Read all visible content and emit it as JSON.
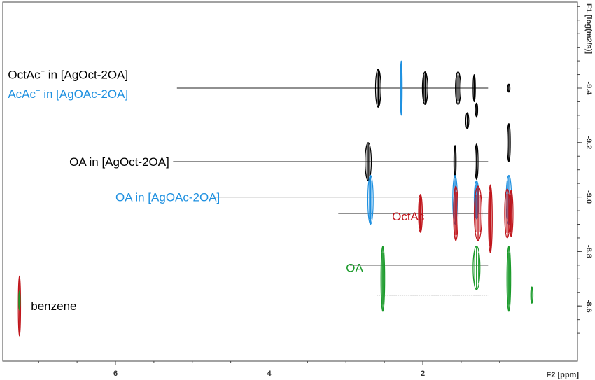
{
  "chart_data": {
    "type": "scatter",
    "title": "",
    "xlabel": "F2 [ppm]",
    "ylabel": "F1 [log(m2/s)]",
    "xlim": [
      7.4,
      1.0
    ],
    "ylim": [
      -8.4,
      -9.7
    ],
    "x_ticks": [
      "6",
      "4",
      "2"
    ],
    "x_tick_values": [
      6,
      4,
      2
    ],
    "y_ticks": [
      "-9.4",
      "-9.2",
      "-9.0",
      "-8.8",
      "-8.6"
    ],
    "y_tick_values": [
      -9.4,
      -9.2,
      -9.0,
      -8.8,
      -8.6
    ],
    "grid": false,
    "colors": {
      "black": "#000000",
      "blue": "#1e90e0",
      "red": "#c0161c",
      "green": "#1a9a2a"
    },
    "annotations": [
      {
        "id": "octac-minus-agoct",
        "label": "OctAc",
        "sup": "−",
        "rest": " in [AgOct-2OA]",
        "color": "black",
        "x": 7.4,
        "y": -9.45
      },
      {
        "id": "acac-minus-agoac",
        "label": "AcAc",
        "sup": "−",
        "rest": " in [AgOAc-2OA]",
        "color": "blue",
        "x": 7.4,
        "y": -9.38
      },
      {
        "id": "oa-agoct",
        "label": "OA in [AgOct-2OA]",
        "sup": "",
        "rest": "",
        "color": "black",
        "x": 6.6,
        "y": -9.13
      },
      {
        "id": "oa-agoac",
        "label": "OA in [AgOAc-2OA]",
        "sup": "",
        "rest": "",
        "color": "blue",
        "x": 6.0,
        "y": -9.0
      },
      {
        "id": "octac",
        "label": "OctAc",
        "sup": "",
        "rest": "",
        "color": "red",
        "x": 2.4,
        "y": -8.93
      },
      {
        "id": "oa",
        "label": "OA",
        "sup": "",
        "rest": "",
        "color": "green",
        "x": 3.0,
        "y": -8.74
      },
      {
        "id": "benzene",
        "label": "benzene",
        "sup": "",
        "rest": "",
        "color": "black",
        "x": 7.1,
        "y": -8.6
      }
    ],
    "reference_lines": [
      {
        "id": "line-octac-agoct",
        "y": -9.4,
        "x_from": 5.2,
        "x_to": 1.15,
        "dotted": false
      },
      {
        "id": "line-oa-agoct",
        "y": -9.13,
        "x_from": 5.25,
        "x_to": 1.15,
        "dotted": false
      },
      {
        "id": "line-oa-agoac",
        "y": -9.0,
        "x_from": 4.75,
        "x_to": 1.15,
        "dotted": false
      },
      {
        "id": "line-octac",
        "y": -8.94,
        "x_from": 3.1,
        "x_to": 1.15,
        "dotted": false
      },
      {
        "id": "line-oa",
        "y": -8.75,
        "x_from": 2.95,
        "x_to": 1.15,
        "dotted": false
      },
      {
        "id": "line-oa-lower",
        "y": -8.64,
        "x_from": 2.6,
        "x_to": 1.15,
        "dotted": true
      }
    ],
    "series": [
      {
        "name": "OctAc− in [AgOct-2OA]",
        "color": "black",
        "peaks": [
          {
            "x": 2.58,
            "y": -9.4,
            "h": 0.14,
            "w": 0.07
          },
          {
            "x": 1.97,
            "y": -9.4,
            "h": 0.12,
            "w": 0.07
          },
          {
            "x": 1.54,
            "y": -9.4,
            "h": 0.12,
            "w": 0.07
          },
          {
            "x": 1.33,
            "y": -9.4,
            "h": 0.1,
            "w": 0.03
          },
          {
            "x": 1.3,
            "y": -9.32,
            "h": 0.05,
            "w": 0.03
          },
          {
            "x": 0.88,
            "y": -9.4,
            "h": 0.03,
            "w": 0.03
          }
        ]
      },
      {
        "name": "AcAc− in [AgOAc-2OA]",
        "color": "blue",
        "peaks": [
          {
            "x": 2.28,
            "y": -9.4,
            "h": 0.2,
            "w": 0.025
          }
        ]
      },
      {
        "name": "OA in [AgOct-2OA]",
        "color": "black",
        "peaks": [
          {
            "x": 2.71,
            "y": -9.13,
            "h": 0.14,
            "w": 0.08
          },
          {
            "x": 1.58,
            "y": -9.13,
            "h": 0.12,
            "w": 0.03
          },
          {
            "x": 1.42,
            "y": -9.28,
            "h": 0.06,
            "w": 0.04
          },
          {
            "x": 1.3,
            "y": -9.13,
            "h": 0.13,
            "w": 0.04
          },
          {
            "x": 0.88,
            "y": -9.2,
            "h": 0.14,
            "w": 0.04
          }
        ]
      },
      {
        "name": "OA in [AgOAc-2OA]",
        "color": "blue",
        "peaks": [
          {
            "x": 2.68,
            "y": -8.99,
            "h": 0.18,
            "w": 0.07
          },
          {
            "x": 1.58,
            "y": -8.99,
            "h": 0.18,
            "w": 0.06
          },
          {
            "x": 1.3,
            "y": -8.99,
            "h": 0.14,
            "w": 0.06
          },
          {
            "x": 0.88,
            "y": -8.99,
            "h": 0.18,
            "w": 0.07
          }
        ]
      },
      {
        "name": "OctAc",
        "color": "red",
        "peaks": [
          {
            "x": 2.03,
            "y": -8.94,
            "h": 0.14,
            "w": 0.05
          },
          {
            "x": 1.57,
            "y": -8.94,
            "h": 0.2,
            "w": 0.06
          },
          {
            "x": 1.28,
            "y": -8.94,
            "h": 0.2,
            "w": 0.1
          },
          {
            "x": 1.12,
            "y": -8.92,
            "h": 0.25,
            "w": 0.05
          },
          {
            "x": 0.9,
            "y": -8.94,
            "h": 0.18,
            "w": 0.07
          },
          {
            "x": 0.85,
            "y": -8.94,
            "h": 0.17,
            "w": 0.05
          }
        ]
      },
      {
        "name": "OA",
        "color": "green",
        "peaks": [
          {
            "x": 2.52,
            "y": -8.7,
            "h": 0.24,
            "w": 0.05
          },
          {
            "x": 1.3,
            "y": -8.74,
            "h": 0.16,
            "w": 0.09
          },
          {
            "x": 0.88,
            "y": -8.7,
            "h": 0.24,
            "w": 0.05
          },
          {
            "x": 0.58,
            "y": -8.64,
            "h": 0.06,
            "w": 0.03
          }
        ]
      },
      {
        "name": "benzene",
        "color": "red",
        "peaks": [
          {
            "x": 7.25,
            "y": -8.6,
            "h": 0.22,
            "w": 0.03
          }
        ]
      },
      {
        "name": "benzene",
        "color": "green",
        "peaks": [
          {
            "x": 7.25,
            "y": -8.62,
            "h": 0.07,
            "w": 0.015
          }
        ]
      }
    ]
  }
}
